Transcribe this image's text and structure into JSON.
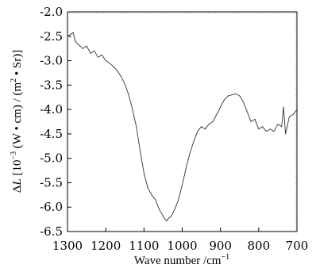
{
  "chart_data": {
    "type": "line",
    "title": "",
    "xlabel_main": "Wave number /cm",
    "xlabel_sup": "−1",
    "ylabel_delta": "Δ",
    "ylabel_var": "L",
    "ylabel_pre": " [10",
    "ylabel_sup": "−3",
    "ylabel_post": " (W • cm) / (m",
    "ylabel_sup2": "2",
    "ylabel_end": " • Sr)]",
    "xlim": [
      1300,
      700
    ],
    "ylim": [
      -6.5,
      -2.0
    ],
    "x_reversed": true,
    "grid": "dotted-top-right",
    "x_ticks": [
      1300,
      1200,
      1100,
      1000,
      900,
      800,
      700
    ],
    "x_tick_labels": [
      "1300",
      "1200",
      "1100",
      "1000",
      "900",
      "800",
      "700"
    ],
    "y_ticks": [
      -2.0,
      -2.5,
      -3.0,
      -3.5,
      -4.0,
      -4.5,
      -5.0,
      -5.5,
      -6.0,
      -6.5
    ],
    "y_tick_labels": [
      "-2.0",
      "-2.5",
      "-3.0",
      "-3.5",
      "-4.0",
      "-4.5",
      "-5.0",
      "-5.5",
      "-6.0",
      "-6.5"
    ],
    "series": [
      {
        "color": "#333333",
        "x": [
          1300,
          1290,
          1285,
          1280,
          1270,
          1260,
          1250,
          1240,
          1230,
          1220,
          1210,
          1200,
          1190,
          1180,
          1170,
          1160,
          1150,
          1140,
          1130,
          1120,
          1110,
          1100,
          1090,
          1080,
          1070,
          1060,
          1050,
          1045,
          1040,
          1035,
          1030,
          1020,
          1010,
          1000,
          990,
          980,
          970,
          960,
          950,
          940,
          930,
          920,
          910,
          900,
          890,
          880,
          870,
          860,
          850,
          840,
          830,
          820,
          810,
          800,
          790,
          780,
          770,
          760,
          750,
          740,
          735,
          730,
          720,
          710,
          700
        ],
        "y": [
          -2.5,
          -2.45,
          -2.42,
          -2.6,
          -2.68,
          -2.75,
          -2.7,
          -2.85,
          -2.8,
          -2.93,
          -2.88,
          -3.0,
          -3.05,
          -3.12,
          -3.2,
          -3.32,
          -3.48,
          -3.7,
          -4.0,
          -4.35,
          -4.85,
          -5.3,
          -5.6,
          -5.75,
          -5.85,
          -6.05,
          -6.18,
          -6.25,
          -6.28,
          -6.22,
          -6.2,
          -6.05,
          -5.85,
          -5.55,
          -5.2,
          -4.9,
          -4.65,
          -4.45,
          -4.35,
          -4.4,
          -4.3,
          -4.25,
          -4.1,
          -3.95,
          -3.8,
          -3.72,
          -3.7,
          -3.68,
          -3.72,
          -3.85,
          -4.05,
          -4.25,
          -4.2,
          -4.4,
          -4.35,
          -4.45,
          -4.4,
          -4.45,
          -4.3,
          -4.35,
          -3.95,
          -4.5,
          -4.15,
          -4.1,
          -4.0
        ]
      }
    ]
  }
}
